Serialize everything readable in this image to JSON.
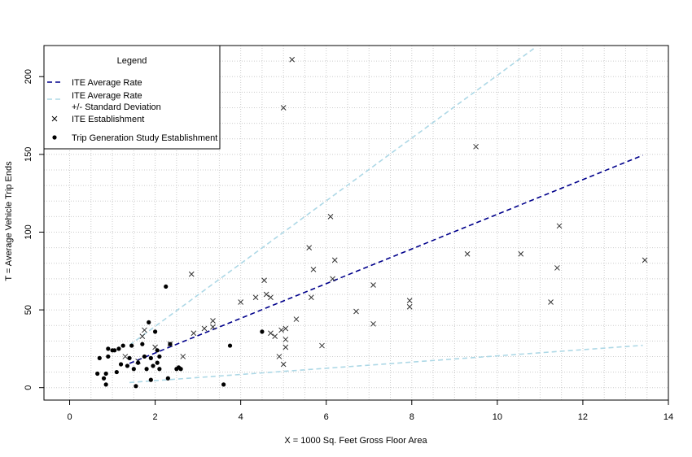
{
  "chart_data": {
    "type": "scatter",
    "xlabel": "X = 1000 Sq. Feet Gross Floor Area",
    "ylabel": "T = Average Vehicle Trip Ends",
    "xlim": [
      -0.6,
      14
    ],
    "ylim": [
      -8,
      220
    ],
    "x_ticks": [
      "0",
      "2",
      "4",
      "6",
      "8",
      "10",
      "12",
      "14"
    ],
    "y_ticks": [
      "0",
      "50",
      "100",
      "150",
      "200"
    ],
    "grid": "dotted",
    "legend": {
      "title": "Legend",
      "placement": "top-left",
      "entries": [
        {
          "label": "ITE Average Rate",
          "marker": "dashed-line",
          "color": "#00008B"
        },
        {
          "label": "ITE Average Rate\n+/- Standard Deviation",
          "marker": "dashed-line",
          "color": "#ADD8E6"
        },
        {
          "label": "ITE Establishment",
          "marker": "x",
          "color": "#000000"
        },
        {
          "label": "Trip Generation Study Establishment",
          "marker": "dot",
          "color": "#000000"
        }
      ]
    },
    "lines": [
      {
        "name": "ITE Average Rate",
        "color": "#00008B",
        "dash": "6,4",
        "x": [
          1.4,
          13.4
        ],
        "y": [
          15.6,
          149.4
        ]
      },
      {
        "name": "ITE Average Rate +/- Standard Deviation (upper)",
        "color": "#ADD8E6",
        "dash": "6,4",
        "x": [
          1.4,
          10.9
        ],
        "y": [
          27.3,
          219
        ]
      },
      {
        "name": "ITE Average Rate +/- Standard Deviation (lower)",
        "color": "#ADD8E6",
        "dash": "6,4",
        "x": [
          1.4,
          13.4
        ],
        "y": [
          3.3,
          27.2
        ]
      }
    ],
    "series": [
      {
        "name": "ITE Establishment",
        "marker": "x",
        "points": [
          [
            1.3,
            20
          ],
          [
            1.6,
            17
          ],
          [
            1.7,
            33
          ],
          [
            1.75,
            37
          ],
          [
            2.0,
            26
          ],
          [
            2.35,
            28
          ],
          [
            2.65,
            20
          ],
          [
            2.85,
            73
          ],
          [
            2.9,
            35
          ],
          [
            3.15,
            38
          ],
          [
            3.35,
            43
          ],
          [
            3.35,
            39
          ],
          [
            4.0,
            55
          ],
          [
            4.35,
            58
          ],
          [
            4.55,
            69
          ],
          [
            4.6,
            60
          ],
          [
            4.7,
            58
          ],
          [
            4.7,
            35
          ],
          [
            4.8,
            33
          ],
          [
            4.9,
            20
          ],
          [
            4.95,
            37
          ],
          [
            5.0,
            180
          ],
          [
            5.0,
            15
          ],
          [
            5.05,
            26
          ],
          [
            5.05,
            31
          ],
          [
            5.05,
            38
          ],
          [
            5.2,
            211
          ],
          [
            5.3,
            44
          ],
          [
            5.6,
            90
          ],
          [
            5.65,
            58
          ],
          [
            5.7,
            76
          ],
          [
            5.9,
            27
          ],
          [
            6.1,
            110
          ],
          [
            6.15,
            70
          ],
          [
            6.2,
            82
          ],
          [
            6.7,
            49
          ],
          [
            7.1,
            41
          ],
          [
            7.1,
            66
          ],
          [
            7.95,
            56
          ],
          [
            7.95,
            52
          ],
          [
            9.3,
            86
          ],
          [
            9.5,
            155
          ],
          [
            10.55,
            86
          ],
          [
            11.25,
            55
          ],
          [
            11.4,
            77
          ],
          [
            11.45,
            104
          ],
          [
            13.45,
            82
          ]
        ]
      },
      {
        "name": "Trip Generation Study Establishment",
        "marker": "dot",
        "points": [
          [
            0.65,
            9
          ],
          [
            0.7,
            19
          ],
          [
            0.8,
            6
          ],
          [
            0.85,
            2
          ],
          [
            0.85,
            9
          ],
          [
            0.9,
            25
          ],
          [
            0.9,
            20
          ],
          [
            1.0,
            24
          ],
          [
            1.05,
            24
          ],
          [
            1.1,
            10
          ],
          [
            1.15,
            25
          ],
          [
            1.2,
            15
          ],
          [
            1.25,
            27
          ],
          [
            1.35,
            14
          ],
          [
            1.4,
            19
          ],
          [
            1.45,
            27
          ],
          [
            1.5,
            12
          ],
          [
            1.55,
            1
          ],
          [
            1.6,
            16
          ],
          [
            1.7,
            28
          ],
          [
            1.75,
            20
          ],
          [
            1.8,
            12
          ],
          [
            1.85,
            42
          ],
          [
            1.9,
            19
          ],
          [
            1.9,
            5
          ],
          [
            1.95,
            14
          ],
          [
            2.0,
            36
          ],
          [
            2.05,
            16
          ],
          [
            2.05,
            24
          ],
          [
            2.1,
            20
          ],
          [
            2.1,
            12
          ],
          [
            2.25,
            65
          ],
          [
            2.3,
            6
          ],
          [
            2.35,
            28
          ],
          [
            2.5,
            12
          ],
          [
            2.55,
            13
          ],
          [
            2.6,
            12
          ],
          [
            3.6,
            2
          ],
          [
            3.75,
            27
          ],
          [
            4.5,
            36
          ]
        ]
      }
    ]
  }
}
